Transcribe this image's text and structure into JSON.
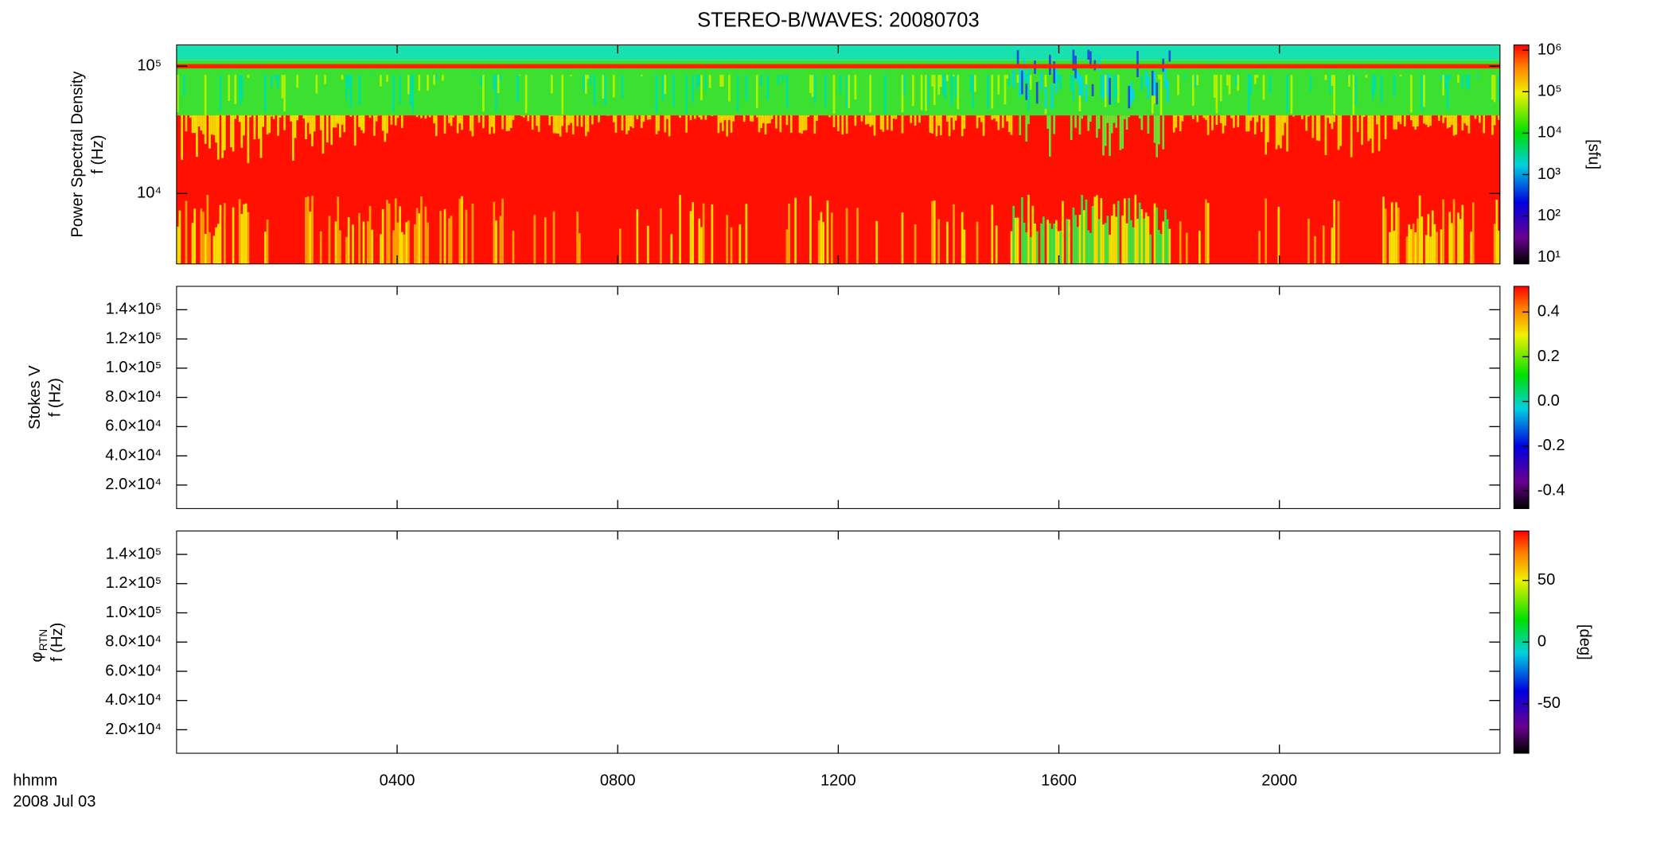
{
  "chart_data": [
    {
      "type": "heatmap",
      "title": "STEREO-B/WAVES: 20080703",
      "ylabel": "Power Spectral Density",
      "yunit": "f (Hz)",
      "ylog": true,
      "ylim": [
        2800,
        147000
      ],
      "yticks": [
        {
          "value": 10000,
          "label": "10⁴"
        },
        {
          "value": 100000,
          "label": "10⁵"
        }
      ],
      "colorbar": {
        "label": "[sfu]",
        "log": true,
        "lim": [
          7,
          1350000
        ],
        "ticks": [
          {
            "value": 10,
            "label": "10¹"
          },
          {
            "value": 100,
            "label": "10²"
          },
          {
            "value": 1000,
            "label": "10³"
          },
          {
            "value": 10000,
            "label": "10⁴"
          },
          {
            "value": 100000,
            "label": "10⁵"
          },
          {
            "value": 1000000,
            "label": "10⁶"
          }
        ]
      }
    },
    {
      "type": "heatmap",
      "ylabel": "Stokes V",
      "yunit": "f (Hz)",
      "ylog": false,
      "ylim": [
        3900,
        156000
      ],
      "yticks": [
        {
          "value": 20000,
          "label": "2.0×10⁴"
        },
        {
          "value": 40000,
          "label": "4.0×10⁴"
        },
        {
          "value": 60000,
          "label": "6.0×10⁴"
        },
        {
          "value": 80000,
          "label": "8.0×10⁴"
        },
        {
          "value": 100000,
          "label": "1.0×10⁵"
        },
        {
          "value": 120000,
          "label": "1.2×10⁵"
        },
        {
          "value": 140000,
          "label": "1.4×10⁵"
        }
      ],
      "colorbar": {
        "log": false,
        "lim": [
          -0.48,
          0.515
        ],
        "ticks": [
          0.4,
          0.2,
          {
            "value": 0,
            "label": "0.0"
          },
          -0.2,
          -0.4
        ]
      }
    },
    {
      "type": "heatmap",
      "ylabel": "φ",
      "ylabel_subscript": "RTN",
      "yunit": "f (Hz)",
      "ylog": false,
      "ylim": [
        3900,
        156000
      ],
      "yticks": [
        {
          "value": 20000,
          "label": "2.0×10⁴"
        },
        {
          "value": 40000,
          "label": "4.0×10⁴"
        },
        {
          "value": 60000,
          "label": "6.0×10⁴"
        },
        {
          "value": 80000,
          "label": "8.0×10⁴"
        },
        {
          "value": 100000,
          "label": "1.0×10⁵"
        },
        {
          "value": 120000,
          "label": "1.2×10⁵"
        },
        {
          "value": 140000,
          "label": "1.4×10⁵"
        }
      ],
      "colorbar": {
        "label": "[deg]",
        "log": false,
        "lim": [
          -90,
          90
        ],
        "ticks": [
          50,
          0,
          -50
        ]
      },
      "xlabel": "hhmm",
      "date": "2008 Jul 03",
      "xlim": [
        0,
        1440
      ],
      "xticks": [
        {
          "value": 240,
          "label": "0400"
        },
        {
          "value": 480,
          "label": "0800"
        },
        {
          "value": 720,
          "label": "1200"
        },
        {
          "value": 960,
          "label": "1600"
        },
        {
          "value": 1200,
          "label": "2000"
        }
      ]
    }
  ]
}
